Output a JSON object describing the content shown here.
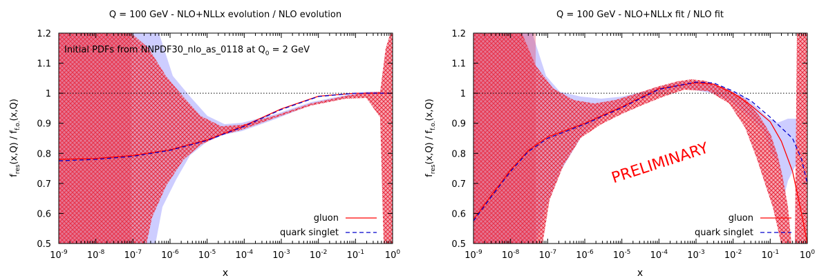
{
  "chart_data": [
    {
      "type": "line",
      "title": "Q = 100 GeV  -  NLO+NLLx evolution / NLO evolution",
      "annotation": {
        "text": "Initial PDFs from NNPDF30_nlo_as_0118 at Q",
        "sub": "0",
        "tail": " = 2 GeV"
      },
      "xlabel": "x",
      "ylabel": {
        "f1": "f",
        "s1": "res",
        "m": "(x,Q) / f",
        "s2": "f.o.",
        "e": "(x,Q)"
      },
      "x_scale": "log",
      "xlim": [
        1e-09,
        1
      ],
      "ylim": [
        0.5,
        1.2
      ],
      "xticks": [
        {
          "b": "10",
          "e": "-9"
        },
        {
          "b": "10",
          "e": "-8"
        },
        {
          "b": "10",
          "e": "-7"
        },
        {
          "b": "10",
          "e": "-6"
        },
        {
          "b": "10",
          "e": "-5"
        },
        {
          "b": "10",
          "e": "-4"
        },
        {
          "b": "10",
          "e": "-3"
        },
        {
          "b": "10",
          "e": "-2"
        },
        {
          "b": "10",
          "e": "-1"
        },
        {
          "b": "10",
          "e": "0"
        }
      ],
      "yticks": [
        "0.5",
        "0.6",
        "0.7",
        "0.8",
        "0.9",
        "1",
        "1.1",
        "1.2"
      ],
      "reference_line": 1,
      "legend": {
        "position": "bottom-right",
        "entries": [
          "gluon",
          "quark singlet"
        ]
      },
      "colors": {
        "gluon": "#ff0000",
        "quark_singlet": "#0000cc",
        "singlet_band": "#c8c8ff",
        "gluon_band": "#f07080"
      },
      "series": [
        {
          "name": "gluon",
          "style": "solid",
          "x": [
            1e-09,
            1e-08,
            1e-07,
            1e-06,
            1e-05,
            0.0001,
            0.001,
            0.01,
            0.1,
            0.3,
            1
          ],
          "y": [
            0.78,
            0.783,
            0.793,
            0.812,
            0.845,
            0.892,
            0.948,
            0.99,
            1.0,
            1.0,
            1.0
          ]
        },
        {
          "name": "quark singlet",
          "style": "dashed",
          "x": [
            1e-09,
            1e-08,
            1e-07,
            1e-06,
            1e-05,
            0.0001,
            0.001,
            0.01,
            0.1,
            0.3,
            1
          ],
          "y": [
            0.775,
            0.78,
            0.79,
            0.81,
            0.843,
            0.89,
            0.946,
            0.989,
            1.0,
            1.0,
            1.0
          ]
        }
      ]
    },
    {
      "type": "line",
      "title": "Q = 100 GeV  -  NLO+NLLx fit / NLO fit",
      "watermark": "PRELIMINARY",
      "xlabel": "x",
      "ylabel": {
        "f1": "f",
        "s1": "res",
        "m": "(x,Q) / f",
        "s2": "f.o.",
        "e": "(x,Q)"
      },
      "x_scale": "log",
      "xlim": [
        1e-09,
        1
      ],
      "ylim": [
        0.5,
        1.2
      ],
      "xticks": [
        {
          "b": "10",
          "e": "-9"
        },
        {
          "b": "10",
          "e": "-8"
        },
        {
          "b": "10",
          "e": "-7"
        },
        {
          "b": "10",
          "e": "-6"
        },
        {
          "b": "10",
          "e": "-5"
        },
        {
          "b": "10",
          "e": "-4"
        },
        {
          "b": "10",
          "e": "-3"
        },
        {
          "b": "10",
          "e": "-2"
        },
        {
          "b": "10",
          "e": "-1"
        },
        {
          "b": "10",
          "e": "0"
        }
      ],
      "yticks": [
        "0.5",
        "0.6",
        "0.7",
        "0.8",
        "0.9",
        "1",
        "1.1",
        "1.2"
      ],
      "reference_line": 1,
      "legend": {
        "position": "bottom-right",
        "entries": [
          "gluon",
          "quark singlet"
        ]
      },
      "colors": {
        "gluon": "#ff0000",
        "quark_singlet": "#0000cc",
        "singlet_band": "#c8c8ff",
        "gluon_band": "#f07080",
        "watermark": "#ff0000"
      },
      "series": [
        {
          "name": "gluon",
          "style": "solid",
          "x": [
            1e-09,
            3e-09,
            1e-08,
            3e-08,
            1e-07,
            1e-06,
            1e-05,
            0.0001,
            0.001,
            0.003,
            0.01,
            0.03,
            0.1,
            0.2,
            0.4,
            0.7,
            1
          ],
          "y": [
            0.58,
            0.66,
            0.745,
            0.81,
            0.855,
            0.9,
            0.955,
            1.015,
            1.035,
            1.03,
            1.0,
            0.96,
            0.905,
            0.84,
            0.74,
            0.6,
            0.5
          ]
        },
        {
          "name": "quark singlet",
          "style": "dashed",
          "x": [
            1e-09,
            3e-09,
            1e-08,
            3e-08,
            1e-07,
            1e-06,
            1e-05,
            0.0001,
            0.001,
            0.003,
            0.01,
            0.03,
            0.1,
            0.2,
            0.4,
            0.7,
            1
          ],
          "y": [
            0.575,
            0.655,
            0.74,
            0.806,
            0.85,
            0.897,
            0.952,
            1.013,
            1.037,
            1.034,
            1.007,
            0.975,
            0.92,
            0.885,
            0.85,
            0.78,
            0.7
          ]
        }
      ]
    }
  ]
}
